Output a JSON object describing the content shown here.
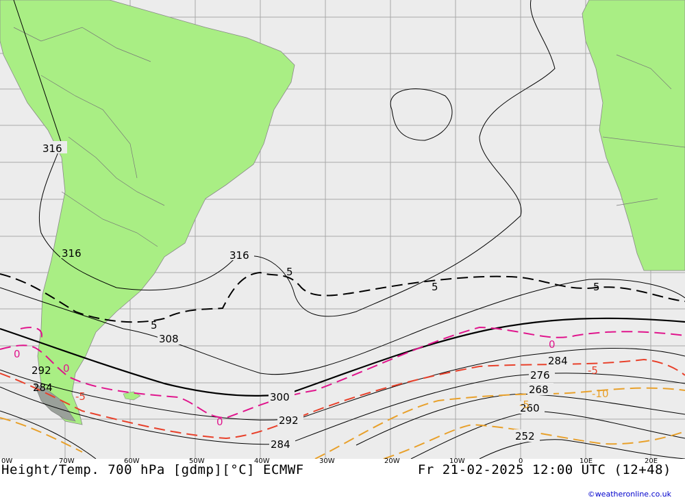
{
  "title": "Height/Temp. 700 hPa [gdmp][°C] ECMWF",
  "valid_time": "Fr 21-02-2025 12:00 UTC (12+48)",
  "copyright": "©weatheronline.co.uk",
  "longitude_labels": [
    "0W",
    "70W",
    "60W",
    "50W",
    "40W",
    "30W",
    "20W",
    "10W",
    "0",
    "10E",
    "20E"
  ],
  "height_contour_labels": [
    "316",
    "316",
    "316",
    "308",
    "300",
    "292",
    "292",
    "284",
    "284",
    "284",
    "276",
    "268",
    "260",
    "252"
  ],
  "temperature_contour_labels": [
    "5",
    "5",
    "5",
    "5",
    "0",
    "0",
    "0",
    "0",
    "-5",
    "-5",
    "-10",
    "-5"
  ],
  "colors": {
    "ocean": "#ececec",
    "land": "#a9ee84",
    "height_contour": "#000000",
    "temp_positive": "#000000",
    "temp_zero": "#e0148c",
    "temp_minus5": "#e8402a",
    "temp_minus10": "#e8a02a",
    "grid": "#a0a0a0"
  }
}
